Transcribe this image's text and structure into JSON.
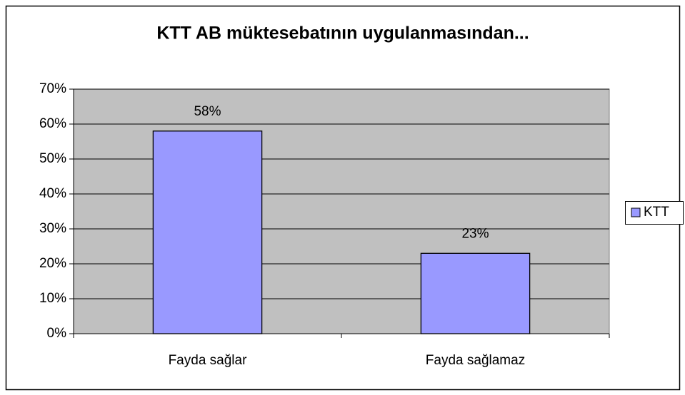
{
  "chart_data": {
    "type": "bar",
    "title": "KTT AB müktesebatının uygulanmasından...",
    "categories": [
      "Fayda sağlar",
      "Fayda sağlamaz"
    ],
    "series": [
      {
        "name": "KTT",
        "color": "#9999ff",
        "values": [
          58,
          23
        ],
        "value_labels": [
          "58%",
          "23%"
        ]
      }
    ],
    "ylim": [
      0,
      70
    ],
    "yticks": [
      {
        "value": 0,
        "label": "0%"
      },
      {
        "value": 10,
        "label": "10%"
      },
      {
        "value": 20,
        "label": "20%"
      },
      {
        "value": 30,
        "label": "30%"
      },
      {
        "value": 40,
        "label": "40%"
      },
      {
        "value": 50,
        "label": "50%"
      },
      {
        "value": 60,
        "label": "60%"
      },
      {
        "value": 70,
        "label": "70%"
      }
    ],
    "grid": true,
    "legend": "right"
  }
}
